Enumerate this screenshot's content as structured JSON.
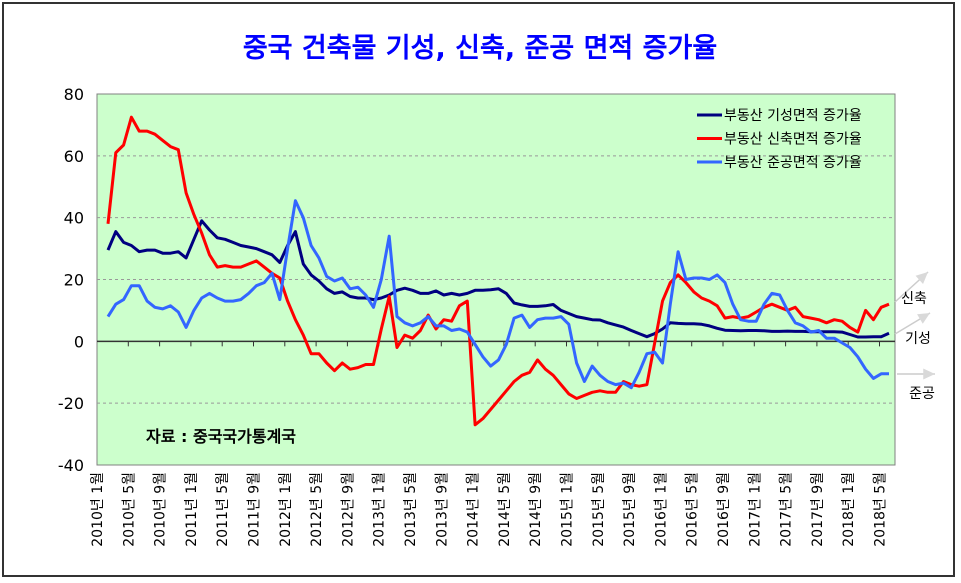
{
  "chart_data": {
    "type": "line",
    "title": "중국 건축물 기성, 신축, 준공 면적 증가율",
    "xlabel": "",
    "ylabel": "",
    "ylim": [
      -40,
      80
    ],
    "yticks": [
      80,
      60,
      40,
      20,
      0,
      -20,
      -40
    ],
    "grid": "horizontal dotted",
    "legend_position": "top-right",
    "background": "#ccffcc",
    "x_tick_labels": [
      "2010년 1월",
      "2010년 5월",
      "2010년 9월",
      "2011년 1월",
      "2011년 5월",
      "2011년 9월",
      "2012년 1월",
      "2012년 5월",
      "2012년 9월",
      "2013년 1월",
      "2013년 5월",
      "2013년 9월",
      "2014년 1월",
      "2014년 5월",
      "2014년 9월",
      "2015년 1월",
      "2015년 5월",
      "2015년 9월",
      "2016년 1월",
      "2016년 5월",
      "2016년 9월",
      "2017년 1월",
      "2017년 5월",
      "2017년 9월",
      "2018년 1월",
      "2018년 5월"
    ],
    "series": [
      {
        "name": "부동산 기성면적 증가율",
        "short": "기성",
        "color": "#000080",
        "values": [
          29.5,
          35.5,
          32,
          31,
          29,
          29.5,
          29.5,
          28.5,
          28.5,
          29,
          27,
          33,
          39,
          36,
          33.5,
          33,
          32,
          31,
          30.5,
          30,
          29,
          28,
          25.5,
          31,
          35.5,
          25,
          21.5,
          19.5,
          17,
          15.5,
          16,
          14.5,
          14,
          14,
          13.5,
          14,
          15,
          16.5,
          17.2,
          16.5,
          15.5,
          15.5,
          16.3,
          15,
          15.5,
          15,
          15.5,
          16.5,
          16.5,
          16.7,
          17,
          15.5,
          12.4,
          11.8,
          11.3,
          11.3,
          11.5,
          11.9,
          10,
          9,
          8,
          7.5,
          7,
          6.9,
          6,
          5.3,
          4.6,
          3.5,
          2.5,
          1.5,
          2.5,
          4,
          6,
          5.8,
          5.7,
          5.7,
          5.5,
          5,
          4.2,
          3.6,
          3.5,
          3.4,
          3.5,
          3.5,
          3.4,
          3.2,
          3.2,
          3.3,
          3.2,
          3.2,
          3.1,
          3.1,
          3.1,
          3.1,
          3,
          2.2,
          1.4,
          1.4,
          1.5,
          1.5,
          2.6
        ]
      },
      {
        "name": "부동산 신축면적 증가율",
        "short": "신축",
        "color": "#ff0000",
        "values": [
          38,
          61,
          63.5,
          72.5,
          68,
          68,
          67,
          65,
          63,
          62,
          48,
          41,
          35,
          28,
          24,
          24.5,
          24,
          24,
          25,
          26,
          24,
          22,
          20.5,
          13,
          7,
          2,
          -4,
          -4,
          -7,
          -9.5,
          -7,
          -9,
          -8.5,
          -7.5,
          -7.5,
          4,
          14.5,
          -2,
          2,
          1,
          3.5,
          8.5,
          4,
          7,
          6.5,
          11.5,
          13,
          -27,
          -25,
          -22,
          -19,
          -16,
          -13,
          -11,
          -10,
          -6,
          -9,
          -11,
          -14,
          -17,
          -18.5,
          -17.5,
          -16.5,
          -16,
          -16.5,
          -16.5,
          -13,
          -14,
          -14.5,
          -14,
          -0.5,
          13,
          19,
          21.5,
          19,
          16,
          14,
          13,
          11.5,
          7.5,
          8,
          7.5,
          8,
          9.5,
          11,
          12,
          11,
          10,
          11,
          8,
          7.5,
          7,
          6,
          7,
          6.5,
          4.5,
          3,
          10,
          7,
          11,
          12
        ]
      },
      {
        "name": "부동산 준공면적 증가율",
        "short": "준공",
        "color": "#3366ff",
        "values": [
          8,
          12,
          13.5,
          18,
          18,
          13,
          11,
          10.5,
          11.5,
          9.5,
          4.5,
          10,
          14,
          15.5,
          14,
          13,
          13,
          13.5,
          15.5,
          18,
          19,
          22,
          13.5,
          30,
          45.5,
          40,
          31,
          27,
          21,
          19.5,
          20.5,
          17,
          17.5,
          15,
          11,
          20,
          34,
          8,
          6,
          5,
          6,
          8,
          5,
          5,
          3.5,
          4,
          3,
          -1,
          -5,
          -8,
          -6,
          -1,
          7.5,
          8.5,
          4.5,
          7,
          7.5,
          7.5,
          8,
          5.5,
          -7,
          -13,
          -8,
          -11,
          -13,
          -14,
          -13.5,
          -15,
          -10,
          -4,
          -3.5,
          -7,
          12,
          29,
          20,
          20.5,
          20.5,
          20,
          21.5,
          19,
          12,
          7,
          6.5,
          6.5,
          12,
          15.5,
          15,
          10,
          6,
          5,
          3,
          3.5,
          1,
          1,
          -0.5,
          -2,
          -5,
          -9,
          -12,
          -10.5,
          -10.5
        ]
      }
    ],
    "annotation": "자료 : 중국국가통계국"
  }
}
